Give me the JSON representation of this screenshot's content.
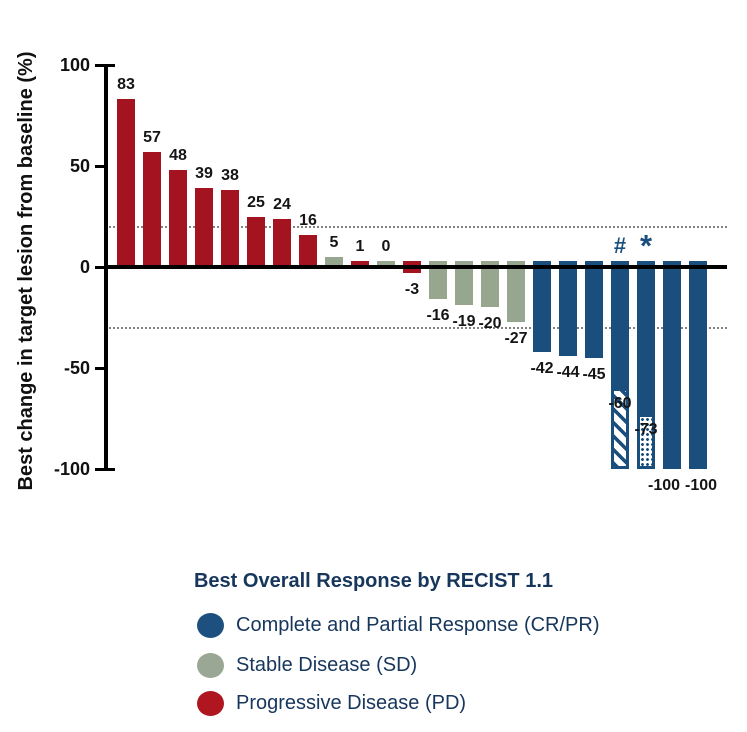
{
  "chart_data": {
    "type": "bar",
    "subtype": "waterfall",
    "title": "",
    "xlabel": "",
    "ylabel": "Best change in target lesion from baseline (%)",
    "ylim": [
      -100,
      100
    ],
    "yticks": [
      "100",
      "50",
      "0",
      "-50",
      "-100"
    ],
    "ytick_values": [
      100,
      50,
      0,
      -50,
      -100
    ],
    "reference_lines": [
      20,
      -30
    ],
    "grid": false,
    "legend_position": "bottom",
    "colors": {
      "CR/PR": "#1a4e7c",
      "SD": "#97a68e",
      "PD": "#a31420"
    },
    "bars": [
      {
        "value": 83,
        "label": "83",
        "response": "PD"
      },
      {
        "value": 57,
        "label": "57",
        "response": "PD"
      },
      {
        "value": 48,
        "label": "48",
        "response": "PD"
      },
      {
        "value": 39,
        "label": "39",
        "response": "PD"
      },
      {
        "value": 38,
        "label": "38",
        "response": "PD"
      },
      {
        "value": 25,
        "label": "25",
        "response": "PD"
      },
      {
        "value": 24,
        "label": "24",
        "response": "PD"
      },
      {
        "value": 16,
        "label": "16",
        "response": "PD"
      },
      {
        "value": 5,
        "label": "5",
        "response": "SD"
      },
      {
        "value": 1,
        "label": "1",
        "response": "PD"
      },
      {
        "value": 0,
        "label": "0",
        "response": "SD"
      },
      {
        "value": -3,
        "label": "-3",
        "response": "PD"
      },
      {
        "value": -16,
        "label": "-16",
        "response": "SD"
      },
      {
        "value": -19,
        "label": "-19",
        "response": "SD"
      },
      {
        "value": -20,
        "label": "-20",
        "response": "SD"
      },
      {
        "value": -27,
        "label": "-27",
        "response": "SD"
      },
      {
        "value": -42,
        "label": "-42",
        "response": "CR/PR"
      },
      {
        "value": -44,
        "label": "-44",
        "response": "CR/PR"
      },
      {
        "value": -45,
        "label": "-45",
        "response": "CR/PR"
      },
      {
        "value": -60,
        "label": "-60",
        "response": "CR/PR",
        "marker": "#",
        "pattern": "hatch",
        "pattern_to": -100
      },
      {
        "value": -73,
        "label": "-73",
        "response": "CR/PR",
        "marker": "*",
        "pattern": "stipple",
        "pattern_to": -100
      },
      {
        "value": -100,
        "label": "-100",
        "response": "CR/PR"
      },
      {
        "value": -100,
        "label": "-100",
        "response": "CR/PR"
      }
    ]
  },
  "legend": {
    "title": "Best Overall Response by RECIST 1.1",
    "items": [
      {
        "label": "Complete and Partial Response (CR/PR)",
        "color": "#1d507e",
        "key": "CR/PR"
      },
      {
        "label": "Stable Disease (SD)",
        "color": "#9aa794",
        "key": "SD"
      },
      {
        "label": "Progressive Disease (PD)",
        "color": "#b0161f",
        "key": "PD"
      }
    ]
  }
}
